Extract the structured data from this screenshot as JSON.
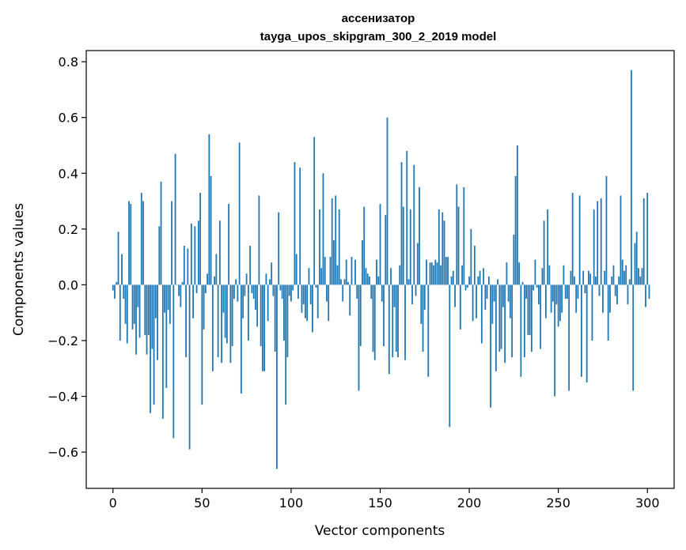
{
  "chart_data": {
    "type": "bar",
    "title": "ассенизатор",
    "subtitle": "tayga_upos_skipgram_300_2_2019 model",
    "xlabel": "Vector components",
    "ylabel": "Components values",
    "xlim": [
      -15,
      315
    ],
    "ylim": [
      -0.73,
      0.84
    ],
    "xticks": [
      0,
      50,
      100,
      150,
      200,
      250,
      300
    ],
    "xtick_labels": [
      "0",
      "50",
      "100",
      "150",
      "200",
      "250",
      "300"
    ],
    "yticks": [
      -0.6,
      -0.4,
      -0.2,
      0.0,
      0.2,
      0.4,
      0.6,
      0.8
    ],
    "ytick_labels": [
      "−0.6",
      "−0.4",
      "−0.2",
      "0.0",
      "0.2",
      "0.4",
      "0.6",
      "0.8"
    ],
    "grid": false,
    "bar_color": "#1f77b4",
    "values": [
      -0.02,
      -0.05,
      0.01,
      0.19,
      -0.2,
      0.11,
      -0.05,
      -0.14,
      -0.21,
      0.3,
      0.29,
      -0.16,
      -0.14,
      -0.25,
      -0.08,
      -0.19,
      0.33,
      0.3,
      -0.18,
      -0.25,
      -0.18,
      -0.46,
      -0.23,
      -0.43,
      -0.12,
      -0.27,
      0.21,
      0.37,
      -0.48,
      -0.1,
      -0.37,
      -0.09,
      -0.14,
      0.3,
      -0.55,
      0.47,
      0.0,
      -0.04,
      -0.08,
      0.01,
      0.14,
      -0.26,
      0.13,
      -0.59,
      0.22,
      -0.12,
      0.21,
      -0.03,
      0.23,
      0.33,
      -0.43,
      -0.16,
      -0.03,
      0.04,
      0.54,
      0.39,
      -0.31,
      0.03,
      0.11,
      -0.26,
      0.23,
      -0.28,
      -0.1,
      -0.19,
      -0.21,
      0.29,
      -0.28,
      -0.22,
      -0.05,
      0.02,
      -0.06,
      0.51,
      -0.39,
      -0.12,
      -0.04,
      0.04,
      -0.2,
      0.14,
      -0.03,
      -0.05,
      -0.09,
      -0.15,
      0.32,
      -0.22,
      -0.31,
      -0.31,
      0.04,
      -0.13,
      0.02,
      0.08,
      -0.04,
      -0.24,
      -0.66,
      0.26,
      -0.02,
      -0.05,
      -0.2,
      -0.43,
      -0.26,
      -0.04,
      -0.06,
      -0.02,
      0.44,
      0.11,
      -0.05,
      0.42,
      -0.1,
      -0.07,
      -0.12,
      -0.13,
      0.06,
      -0.07,
      -0.17,
      0.53,
      -0.01,
      -0.12,
      0.27,
      0.06,
      0.4,
      0.1,
      -0.06,
      -0.13,
      0.1,
      0.31,
      0.16,
      0.32,
      0.07,
      0.27,
      0.02,
      -0.06,
      0.02,
      0.09,
      0.01,
      -0.11,
      0.1,
      0.0,
      0.09,
      -0.05,
      -0.38,
      -0.22,
      0.16,
      0.28,
      0.06,
      0.04,
      0.03,
      -0.05,
      -0.24,
      -0.27,
      0.09,
      0.03,
      0.29,
      -0.06,
      -0.22,
      0.25,
      0.6,
      -0.32,
      0.06,
      -0.26,
      -0.08,
      -0.24,
      -0.26,
      0.07,
      0.44,
      0.28,
      -0.27,
      0.48,
      0.02,
      0.27,
      -0.07,
      0.43,
      -0.04,
      0.15,
      0.35,
      -0.14,
      -0.24,
      -0.09,
      0.09,
      -0.33,
      0.08,
      0.08,
      0.07,
      0.09,
      0.08,
      0.27,
      0.07,
      0.26,
      0.23,
      0.1,
      0.1,
      -0.51,
      0.03,
      0.05,
      -0.08,
      0.36,
      0.28,
      -0.16,
      0.07,
      0.35,
      -0.02,
      -0.01,
      0.03,
      0.2,
      -0.13,
      0.14,
      -0.12,
      0.03,
      0.05,
      -0.21,
      0.06,
      -0.09,
      -0.05,
      0.03,
      -0.44,
      -0.14,
      -0.06,
      -0.31,
      0.02,
      -0.24,
      -0.23,
      -0.08,
      -0.28,
      0.08,
      -0.06,
      -0.12,
      -0.26,
      0.18,
      0.39,
      0.5,
      0.08,
      -0.33,
      0.01,
      -0.26,
      -0.05,
      -0.18,
      -0.18,
      -0.24,
      -0.02,
      0.09,
      -0.01,
      -0.07,
      -0.23,
      0.06,
      0.23,
      -0.12,
      0.27,
      0.07,
      -0.1,
      -0.06,
      -0.4,
      -0.07,
      -0.15,
      -0.13,
      -0.1,
      0.07,
      -0.05,
      -0.05,
      -0.38,
      0.05,
      0.33,
      0.03,
      -0.1,
      -0.05,
      0.32,
      -0.33,
      0.05,
      -0.03,
      -0.35,
      0.05,
      0.04,
      -0.2,
      0.27,
      0.03,
      0.3,
      -0.04,
      0.31,
      -0.1,
      0.05,
      0.39,
      -0.2,
      -0.1,
      0.03,
      0.07,
      -0.04,
      -0.07,
      0.03,
      0.32,
      0.09,
      0.05,
      0.07,
      -0.07,
      0.02,
      0.77,
      -0.38,
      0.15,
      0.19,
      0.06,
      0.03,
      0.06,
      0.31,
      -0.08,
      0.33,
      -0.05
    ]
  }
}
